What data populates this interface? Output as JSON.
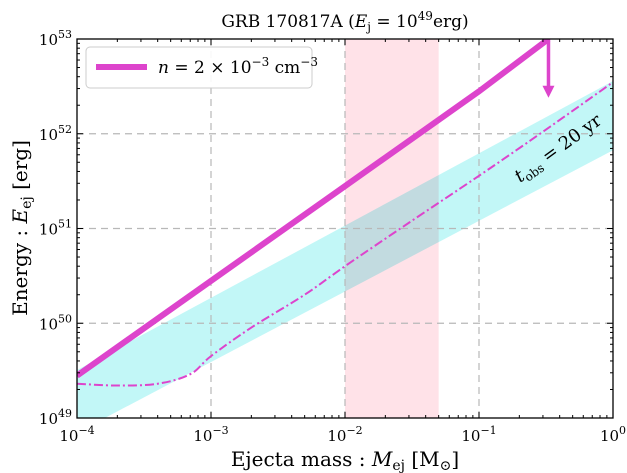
{
  "chart_data": {
    "type": "line",
    "title": "GRB 170817A (E_j = 10^49 erg)",
    "xlabel": "Ejecta mass : M_ej [M_sun]",
    "ylabel": "Energy : E_ej [erg]",
    "xscale": "log",
    "yscale": "log",
    "xlim": [
      0.0001,
      1
    ],
    "ylim": [
      1e+49,
      1e+53
    ],
    "x_ticks": [
      0.0001,
      0.001,
      0.01,
      0.1,
      1
    ],
    "y_ticks": [
      1e+49,
      1e+50,
      1e+51,
      1e+52,
      1e+53
    ],
    "x_tick_labels": [
      "10^-4",
      "10^-3",
      "10^-2",
      "10^-1",
      "10^0"
    ],
    "y_tick_labels": [
      "10^49",
      "10^50",
      "10^51",
      "10^52",
      "10^53"
    ],
    "grid": true,
    "grid_style": "dashed",
    "legend_position": "top-left",
    "colors": {
      "magenta": "#dd44cc",
      "cyan_band": "#bff7f7",
      "pink_band": "#ffdde4",
      "grid": "#b8b8b8"
    },
    "series": [
      {
        "name": "n = 2×10^-3 cm^-3",
        "style": "solid-thick",
        "x": [
          0.0001,
          0.001,
          0.01,
          0.1,
          0.33
        ],
        "y": [
          2.8e+49,
          2.8e+50,
          2.8e+51,
          2.8e+52,
          1e+53
        ]
      },
      {
        "label": "t_obs = 20 yr",
        "style": "dash-dot",
        "x": [
          0.0001,
          0.0002,
          0.0004,
          0.0007,
          0.001,
          0.002,
          0.005,
          0.01,
          0.03,
          0.1,
          0.3,
          1
        ],
        "y": [
          2.3e+49,
          2.2e+49,
          2.3e+49,
          2.9e+49,
          4.5e+49,
          9e+49,
          2e+50,
          4e+50,
          1.15e+51,
          3.6e+51,
          1.05e+52,
          3.5e+52
        ]
      }
    ],
    "bands": [
      {
        "kind": "diagonal-band",
        "color": "cyan",
        "x": [
          0.0001,
          1
        ],
        "y_low": [
          7e+48,
          6.7e+51
        ],
        "y_high": [
          3.2e+49,
          3.6e+52
        ],
        "y_high_at_x_max": 7e+52
      },
      {
        "kind": "vertical-span",
        "color": "pink",
        "x_range": [
          0.01,
          0.05
        ]
      }
    ],
    "arrow": {
      "direction": "down",
      "x": 0.33,
      "y_from": 1e+53,
      "y_to": 2.4e+52
    },
    "legend": [
      {
        "label": "n = 2×10^-3 cm^-3",
        "style": "solid-thick"
      }
    ]
  },
  "text": {
    "title_prefix": "GRB 170817A (",
    "title_E": "E",
    "title_j": "j",
    "title_eq": " = 10",
    "title_exp": "49",
    "title_suffix": "erg)",
    "xlabel_prefix": "Ejecta mass : ",
    "xlabel_M": "M",
    "xlabel_sub": "ej",
    "xlabel_unit": " [M",
    "xlabel_sun": "⊙",
    "xlabel_close": "]",
    "ylabel_prefix": "Energy : ",
    "ylabel_E": "E",
    "ylabel_sub": "ej",
    "ylabel_unit": " [erg]",
    "legend_n": "n",
    "legend_eq": " = 2 × 10",
    "legend_exp1": "−3",
    "legend_cm": " cm",
    "legend_exp2": "−3",
    "annot_t": "t",
    "annot_sub": "obs",
    "annot_val": " = 20 yr",
    "tick_base": "10",
    "x_exps": [
      "−4",
      "−3",
      "−2",
      "−1",
      "0"
    ],
    "y_exps": [
      "49",
      "50",
      "51",
      "52",
      "53"
    ]
  }
}
